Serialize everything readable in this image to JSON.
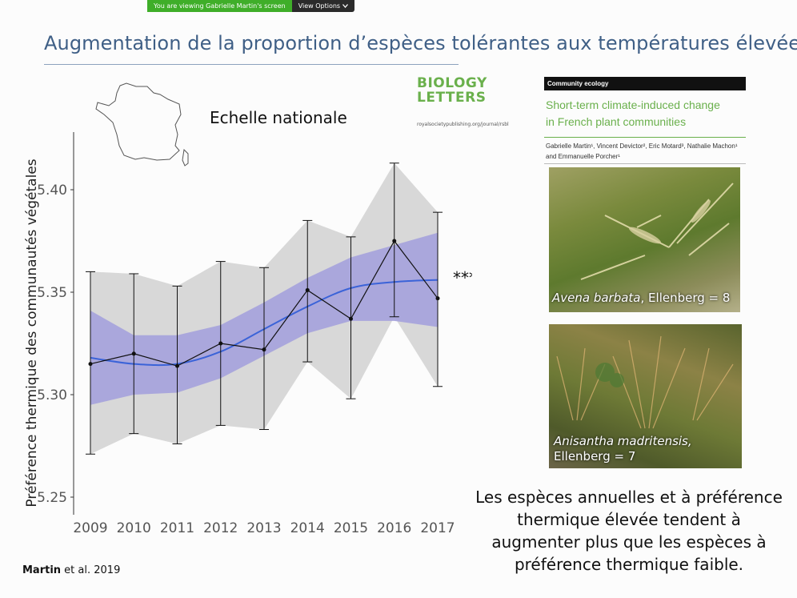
{
  "share_bar": {
    "viewing_text": "You are viewing Gabrielle Martin's screen",
    "options_label": "View Options",
    "options_icon": "chevron-down-icon"
  },
  "slide": {
    "title": "Augmentation de la proportion d’espèces tolérantes aux températures élevées",
    "journal_logo_line1": "BIOLOGY",
    "journal_logo_line2": "LETTERS",
    "journal_url": "royalsocietypublishing.org/journal/rsbl",
    "article_section": "Community ecology",
    "article_title_line1": "Short-term climate-induced change",
    "article_title_line2": "in French plant communities",
    "article_authors_line1": "Gabrielle Martin¹, Vincent Devictor², Eric Motard³, Nathalie Machon¹",
    "article_authors_line2": "and Emmanuelle Porcher¹",
    "photo1_caption": "Avena barbata, Ellenberg = 8",
    "photo1_species": "Avena barbata",
    "photo1_value": ", Ellenberg = 8",
    "photo2_species": "Anisantha madritensis,",
    "photo2_value": "Ellenberg = 7",
    "conclusion": [
      "Les espèces annuelles et à préférence",
      "thermique élevée tendent à",
      "augmenter plus que les espèces à",
      "préférence thermique faible."
    ],
    "citation_author": "Martin",
    "citation_rest": " et al. 2019",
    "colors": {
      "title": "#3f5f86",
      "journal_green": "#6ab04c",
      "ci_band": "#d8d8d8",
      "smooth_band": "#a8a4dc",
      "smooth_line": "#3b63d8"
    }
  },
  "chart_data": {
    "type": "line",
    "title": "Echelle nationale",
    "ylabel": "Préférence thermique des communautés végétales",
    "xlabel": "",
    "x": [
      2009,
      2010,
      2011,
      2012,
      2013,
      2014,
      2015,
      2016,
      2017
    ],
    "ylim": [
      5.245,
      5.43
    ],
    "yticks": [
      5.25,
      5.3,
      5.35,
      5.4
    ],
    "ytick_labels": [
      "5.25",
      "5.30",
      "5.35",
      "5.40"
    ],
    "significance": "***",
    "series": [
      {
        "type": "points",
        "values": [
          5.315,
          5.32,
          5.314,
          5.325,
          5.322,
          5.351,
          5.337,
          5.375,
          5.347
        ],
        "error_low": [
          5.271,
          5.281,
          5.276,
          5.285,
          5.283,
          5.316,
          5.298,
          5.338,
          5.304
        ],
        "error_high": [
          5.36,
          5.359,
          5.353,
          5.365,
          5.362,
          5.385,
          5.377,
          5.413,
          5.389
        ]
      },
      {
        "type": "smooth",
        "values": [
          5.318,
          5.315,
          5.315,
          5.321,
          5.332,
          5.343,
          5.352,
          5.355,
          5.356
        ],
        "band_low": [
          5.295,
          5.3,
          5.301,
          5.308,
          5.319,
          5.33,
          5.336,
          5.336,
          5.333
        ],
        "band_high": [
          5.341,
          5.329,
          5.329,
          5.334,
          5.345,
          5.357,
          5.367,
          5.373,
          5.379
        ]
      }
    ],
    "grid": false
  }
}
